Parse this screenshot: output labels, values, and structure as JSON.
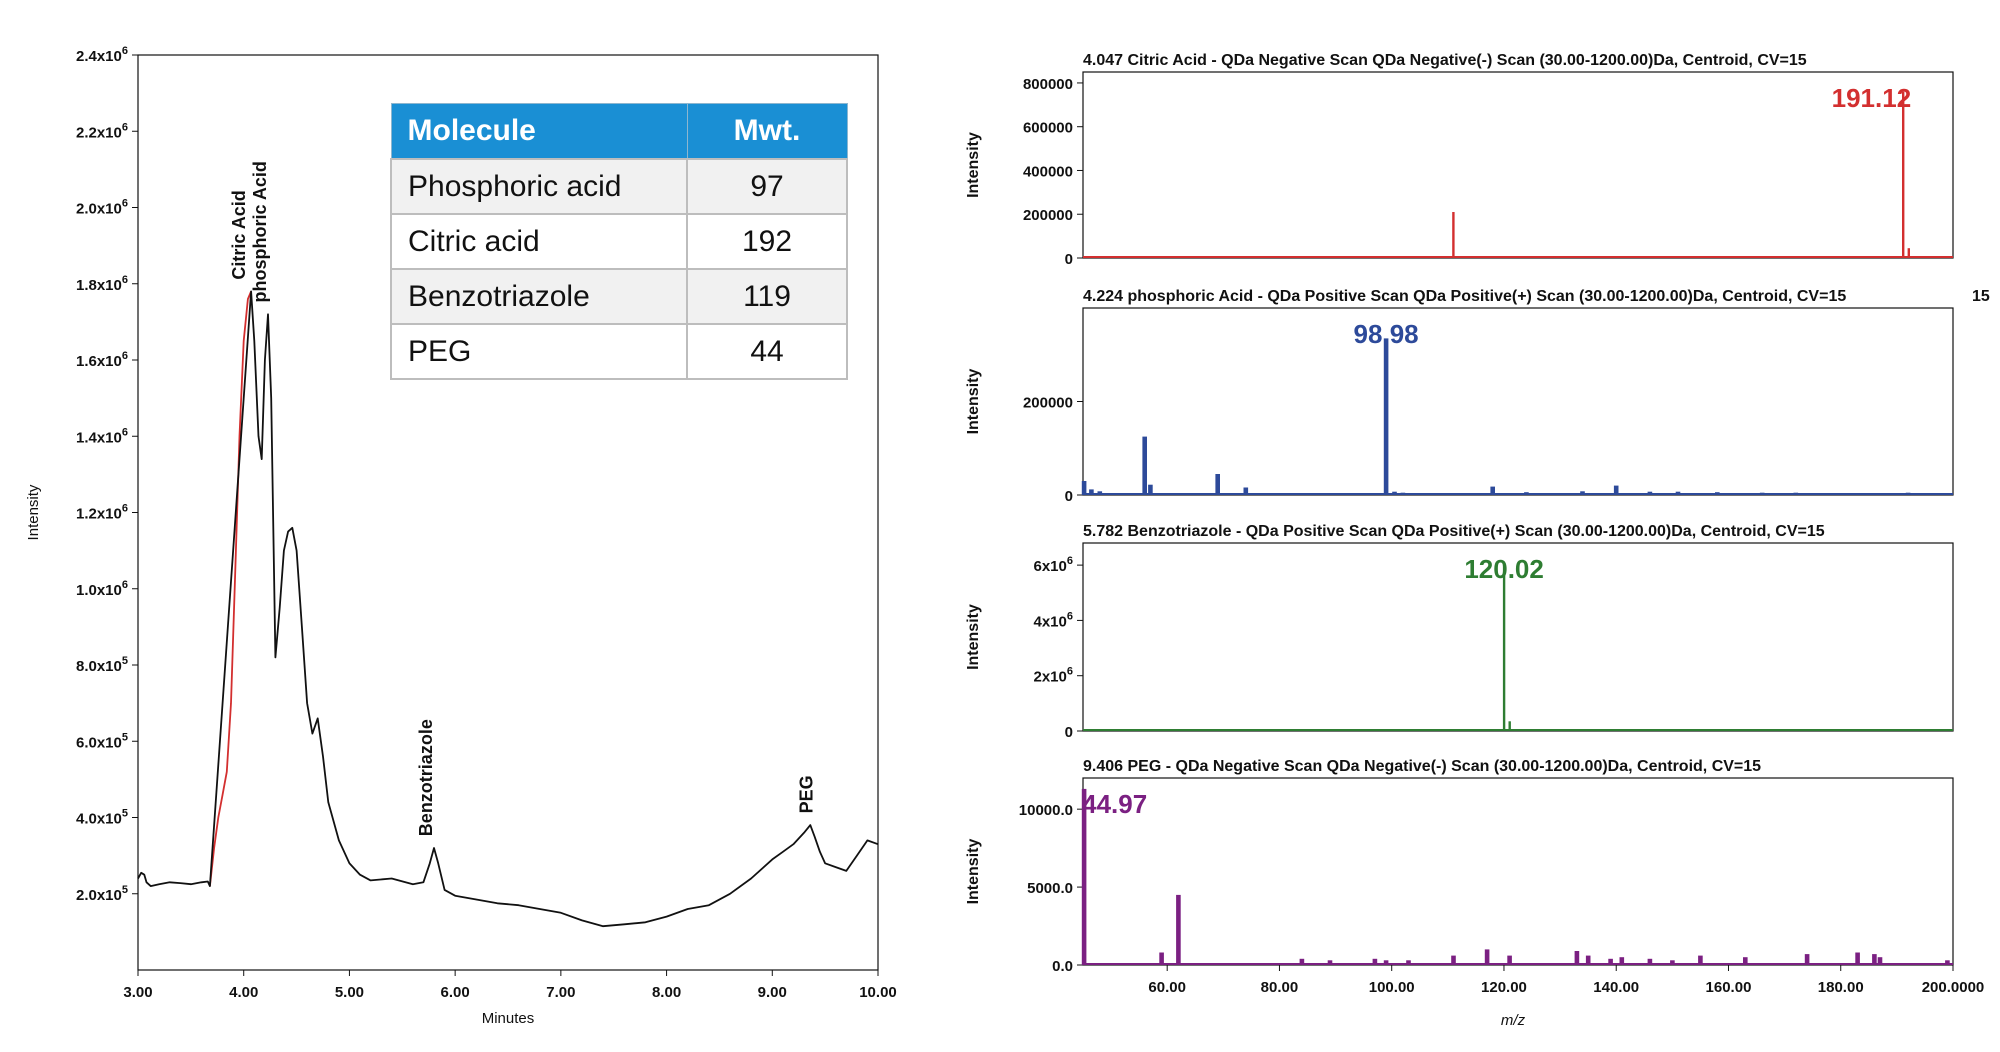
{
  "table": {
    "headers": [
      "Molecule",
      "Mwt."
    ],
    "rows": [
      [
        "Phosphoric acid",
        "97"
      ],
      [
        "Citric acid",
        "192"
      ],
      [
        "Benzotriazole",
        "119"
      ],
      [
        "PEG",
        "44"
      ]
    ]
  },
  "chart_data": [
    {
      "type": "line",
      "title": "",
      "xlabel": "Minutes",
      "ylabel": "Intensity",
      "xlim": [
        3.0,
        10.0
      ],
      "ylim": [
        0,
        2400000
      ],
      "x_ticks": [
        "3.00",
        "4.00",
        "5.00",
        "6.00",
        "7.00",
        "8.00",
        "9.00",
        "10.00"
      ],
      "x_tick_values": [
        3,
        4,
        5,
        6,
        7,
        8,
        9,
        10
      ],
      "y_ticks": [
        {
          "mantissa": "2.0x10",
          "exp": "5",
          "value": 200000
        },
        {
          "mantissa": "4.0x10",
          "exp": "5",
          "value": 400000
        },
        {
          "mantissa": "6.0x10",
          "exp": "5",
          "value": 600000
        },
        {
          "mantissa": "8.0x10",
          "exp": "5",
          "value": 800000
        },
        {
          "mantissa": "1.0x10",
          "exp": "6",
          "value": 1000000
        },
        {
          "mantissa": "1.2x10",
          "exp": "6",
          "value": 1200000
        },
        {
          "mantissa": "1.4x10",
          "exp": "6",
          "value": 1400000
        },
        {
          "mantissa": "1.6x10",
          "exp": "6",
          "value": 1600000
        },
        {
          "mantissa": "1.8x10",
          "exp": "6",
          "value": 1800000
        },
        {
          "mantissa": "2.0x10",
          "exp": "6",
          "value": 2000000
        },
        {
          "mantissa": "2.2x10",
          "exp": "6",
          "value": 2200000
        },
        {
          "mantissa": "2.4x10",
          "exp": "6",
          "value": 2400000
        }
      ],
      "series": [
        {
          "color": "#d32f2f",
          "x": [
            3.68,
            3.72,
            3.76,
            3.8,
            3.84,
            3.88,
            3.92,
            3.96,
            4.0,
            4.04,
            4.07
          ],
          "y": [
            220000,
            320000,
            400000,
            460000,
            520000,
            700000,
            1050000,
            1400000,
            1650000,
            1760000,
            1780000
          ]
        },
        {
          "color": "#111111",
          "x": [
            3.0,
            3.03,
            3.06,
            3.08,
            3.12,
            3.2,
            3.3,
            3.4,
            3.5,
            3.6,
            3.66,
            3.68,
            4.07,
            4.1,
            4.14,
            4.17,
            4.2,
            4.23,
            4.26,
            4.3,
            4.34,
            4.38,
            4.42,
            4.46,
            4.5,
            4.55,
            4.6,
            4.65,
            4.7,
            4.75,
            4.8,
            4.9,
            5.0,
            5.1,
            5.2,
            5.4,
            5.6,
            5.7,
            5.76,
            5.8,
            5.84,
            5.9,
            6.0,
            6.2,
            6.4,
            6.6,
            6.8,
            7.0,
            7.2,
            7.4,
            7.6,
            7.8,
            8.0,
            8.2,
            8.4,
            8.6,
            8.8,
            9.0,
            9.1,
            9.2,
            9.3,
            9.36,
            9.4,
            9.45,
            9.5,
            9.6,
            9.7,
            9.8,
            9.9,
            10.0
          ],
          "y": [
            240000,
            255000,
            250000,
            230000,
            220000,
            225000,
            230000,
            228000,
            225000,
            230000,
            232000,
            220000,
            1780000,
            1650000,
            1400000,
            1340000,
            1600000,
            1720000,
            1500000,
            820000,
            950000,
            1100000,
            1150000,
            1160000,
            1100000,
            900000,
            700000,
            620000,
            660000,
            560000,
            440000,
            340000,
            280000,
            250000,
            235000,
            240000,
            225000,
            230000,
            280000,
            320000,
            280000,
            210000,
            195000,
            185000,
            175000,
            170000,
            160000,
            150000,
            130000,
            115000,
            120000,
            125000,
            140000,
            160000,
            170000,
            200000,
            240000,
            290000,
            310000,
            330000,
            360000,
            380000,
            350000,
            310000,
            280000,
            270000,
            260000,
            300000,
            340000,
            330000
          ]
        }
      ],
      "annotations": [
        "Citric Acid",
        "phosphoric Acid",
        "Benzotriazole",
        "PEG"
      ]
    },
    {
      "type": "bar",
      "title": "4.047 Citric Acid - QDa Negative Scan QDa Negative(-) Scan (30.00-1200.00)Da, Centroid, CV=15",
      "ylabel": "Intensity",
      "color": "#d32f2f",
      "xlim": [
        45,
        200
      ],
      "ylim": [
        0,
        850000
      ],
      "y_ticks": [
        {
          "label": "0",
          "value": 0
        },
        {
          "label": "200000",
          "value": 200000
        },
        {
          "label": "400000",
          "value": 400000
        },
        {
          "label": "600000",
          "value": 600000
        },
        {
          "label": "800000",
          "value": 800000
        }
      ],
      "peak_label": "191.12",
      "x": [
        110.99,
        129.0,
        191.12,
        192.12
      ],
      "values": [
        210000,
        8000,
        760000,
        45000
      ]
    },
    {
      "type": "bar",
      "title": "4.224 phosphoric Acid - QDa Positive Scan QDa Positive(+) Scan (30.00-1200.00)Da, Centroid, CV=15",
      "title_overlap": "15",
      "ylabel": "Intensity",
      "color": "#2d4a9a",
      "xlim": [
        45,
        200
      ],
      "ylim": [
        0,
        400000
      ],
      "y_ticks": [
        {
          "label": "0",
          "value": 0
        },
        {
          "label": "200000",
          "value": 200000
        }
      ],
      "peak_label": "98.98",
      "x": [
        45.2,
        46.5,
        48.0,
        56.0,
        57.0,
        69.0,
        74.0,
        99.0,
        100.5,
        102.0,
        118.0,
        124.0,
        134.0,
        140.0,
        146.0,
        151.0,
        158.0,
        166.0,
        172.0,
        184.0,
        192.0,
        198.0
      ],
      "values": [
        30000,
        12000,
        8000,
        125000,
        22000,
        45000,
        16000,
        335000,
        7000,
        5000,
        18000,
        6000,
        8000,
        20000,
        7000,
        7000,
        6000,
        5000,
        5000,
        4000,
        5000,
        4000
      ]
    },
    {
      "type": "bar",
      "title": "5.782 Benzotriazole - QDa Positive Scan QDa Positive(+) Scan (30.00-1200.00)Da, Centroid, CV=15",
      "ylabel": "Intensity",
      "color": "#2e7d32",
      "xlim": [
        45,
        200
      ],
      "ylim": [
        0,
        6800000
      ],
      "y_ticks": [
        {
          "label": "0",
          "value": 0
        },
        {
          "mantissa": "2x10",
          "exp": "6",
          "value": 2000000
        },
        {
          "mantissa": "4x10",
          "exp": "6",
          "value": 4000000
        },
        {
          "mantissa": "6x10",
          "exp": "6",
          "value": 6000000
        }
      ],
      "peak_label": "120.02",
      "x": [
        120.02,
        121.02
      ],
      "values": [
        6000000,
        350000
      ]
    },
    {
      "type": "bar",
      "title": "9.406 PEG - QDa Negative Scan QDa Negative(-) Scan (30.00-1200.00)Da, Centroid, CV=15",
      "xlabel": "m/z",
      "ylabel": "Intensity",
      "color": "#7b2082",
      "xlim": [
        45,
        200
      ],
      "ylim": [
        0,
        12000
      ],
      "x_ticks": [
        "60.00",
        "80.00",
        "100.00",
        "120.00",
        "140.00",
        "160.00",
        "180.00",
        "200.0000"
      ],
      "x_tick_values": [
        60,
        80,
        100,
        120,
        140,
        160,
        180,
        200
      ],
      "y_ticks": [
        {
          "label": "0.0",
          "value": 0
        },
        {
          "label": "5000.0",
          "value": 5000
        },
        {
          "label": "10000.0",
          "value": 10000
        }
      ],
      "peak_label": "44.97",
      "x": [
        45.2,
        59.0,
        62.0,
        84.0,
        89.0,
        97.0,
        99.0,
        103.0,
        111.0,
        117.0,
        121.0,
        133.0,
        135.0,
        139.0,
        141.0,
        146.0,
        150.0,
        155.0,
        163.0,
        174.0,
        183.0,
        186.0,
        187.0,
        199.0
      ],
      "values": [
        11300,
        800,
        4500,
        400,
        300,
        400,
        300,
        300,
        600,
        1000,
        600,
        900,
        600,
        400,
        500,
        400,
        300,
        600,
        500,
        700,
        800,
        700,
        500,
        300
      ]
    }
  ]
}
